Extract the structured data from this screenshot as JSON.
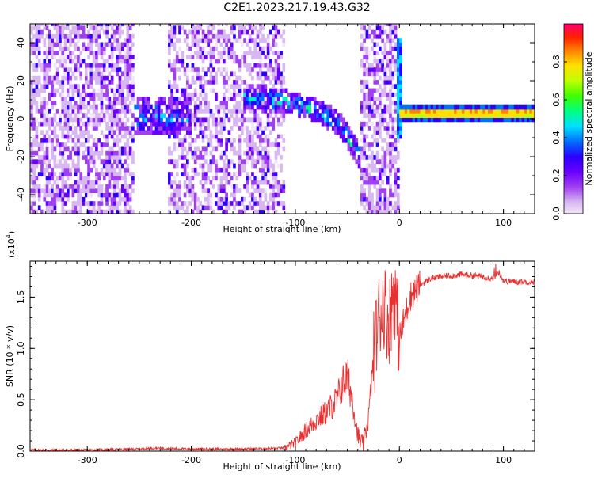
{
  "figure": {
    "title": "C2E1.2023.217.19.43.G32"
  },
  "chart_data": [
    {
      "type": "heatmap",
      "xlabel": "Height of straight line (km)",
      "ylabel": "Frequency (Hz)",
      "xlim": [
        -355,
        130
      ],
      "ylim": [
        -50,
        50
      ],
      "x_ticks": [
        -300,
        -200,
        -100,
        0,
        100
      ],
      "y_ticks": [
        -40,
        -20,
        0,
        20,
        40
      ],
      "colorbar": {
        "label": "Normalized spectral amplitude",
        "range": [
          0.0,
          1.0
        ],
        "ticks": [
          "0.0",
          "0.2",
          "0.4",
          "0.6",
          "0.8"
        ],
        "colormap": [
          "#f2e6f7",
          "#d8b8f0",
          "#a040f0",
          "#6a00ff",
          "#2a00ff",
          "#0070ff",
          "#00e0ff",
          "#00ff80",
          "#40ff00",
          "#c0ff00",
          "#ffe000",
          "#ff8000",
          "#ff2000",
          "#ff0070"
        ]
      },
      "regions": [
        {
          "x": [
            -355,
            -255
          ],
          "freq_range": [
            -50,
            50
          ],
          "level": "noise"
        },
        {
          "x": [
            -255,
            -200
          ],
          "freq_center": 0,
          "level": "medium"
        },
        {
          "x": [
            -225,
            -110
          ],
          "freq_range": [
            -50,
            50
          ],
          "level": "noise"
        },
        {
          "x": [
            -150,
            -40
          ],
          "freq_track": [
            [
              -150,
              10
            ],
            [
              -110,
              8
            ],
            [
              -80,
              3
            ],
            [
              -60,
              -3
            ],
            [
              -40,
              -20
            ]
          ],
          "level": "medium"
        },
        {
          "x": [
            -40,
            0
          ],
          "freq_range": [
            -50,
            50
          ],
          "level": "noise"
        },
        {
          "x": [
            0,
            130
          ],
          "freq_center": 2,
          "level": "high"
        }
      ]
    },
    {
      "type": "line",
      "xlabel": "Height of straight line (km)",
      "ylabel": "SNR (10 * v/v)",
      "y_scale_label": "(x10",
      "y_scale_exp": "4",
      "y_scale_close": ")",
      "xlim": [
        -355,
        130
      ],
      "ylim": [
        0,
        1.85
      ],
      "x_ticks": [
        -300,
        -200,
        -100,
        0,
        100
      ],
      "y_ticks": [
        "0.0",
        "0.5",
        "1.0",
        "1.5"
      ],
      "line_color": "#e83030",
      "series": [
        {
          "x": [
            -355,
            -300,
            -250,
            -240,
            -200,
            -150,
            -110,
            -100,
            -90,
            -80,
            -70,
            -60,
            -55,
            -50,
            -45,
            -40,
            -35,
            -30,
            -25,
            -20,
            -15,
            -10,
            -5,
            0,
            10,
            20,
            30,
            40,
            60,
            80,
            90,
            95,
            100,
            110,
            130
          ],
          "y": [
            0.01,
            0.01,
            0.02,
            0.03,
            0.02,
            0.02,
            0.03,
            0.08,
            0.2,
            0.3,
            0.38,
            0.5,
            0.65,
            0.72,
            0.5,
            0.15,
            0.05,
            0.3,
            0.9,
            1.3,
            1.45,
            1.25,
            1.6,
            1.1,
            1.5,
            1.62,
            1.68,
            1.7,
            1.72,
            1.7,
            1.68,
            1.75,
            1.66,
            1.65,
            1.65
          ]
        }
      ]
    }
  ]
}
